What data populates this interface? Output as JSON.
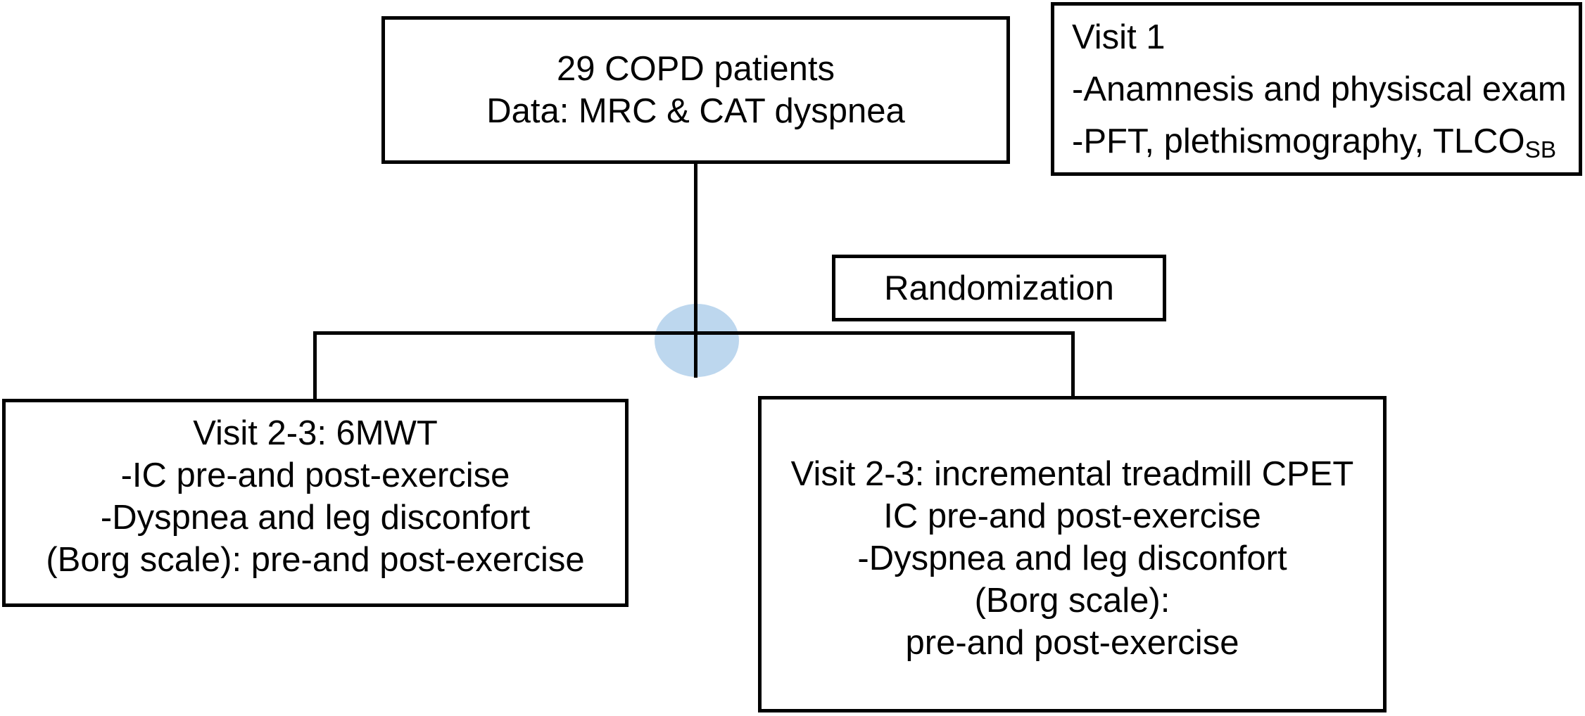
{
  "diagram": {
    "background_color": "#ffffff",
    "line_color": "#000000",
    "highlight_ellipse_color": "#bdd7ee",
    "boxes": {
      "patients": {
        "line1": "29 COPD patients",
        "line2": "Data: MRC & CAT dyspnea"
      },
      "visit1": {
        "line1": "Visit 1",
        "line2": "-Anamnesis and physiscal exam",
        "line3_main": "-PFT, plethismography, TLCO",
        "line3_subscript": "SB"
      },
      "randomization": {
        "label": "Randomization"
      },
      "walk_test": {
        "line1": "Visit 2-3: 6MWT",
        "line2": "-IC pre-and post-exercise",
        "line3": "-Dyspnea and leg disconfort",
        "line4": "(Borg scale): pre-and post-exercise"
      },
      "cpet": {
        "line1": "Visit 2-3: incremental treadmill CPET",
        "line2": "IC pre-and post-exercise",
        "line3": "-Dyspnea and leg disconfort",
        "line4": "(Borg scale):",
        "line5": "pre-and post-exercise"
      }
    }
  }
}
